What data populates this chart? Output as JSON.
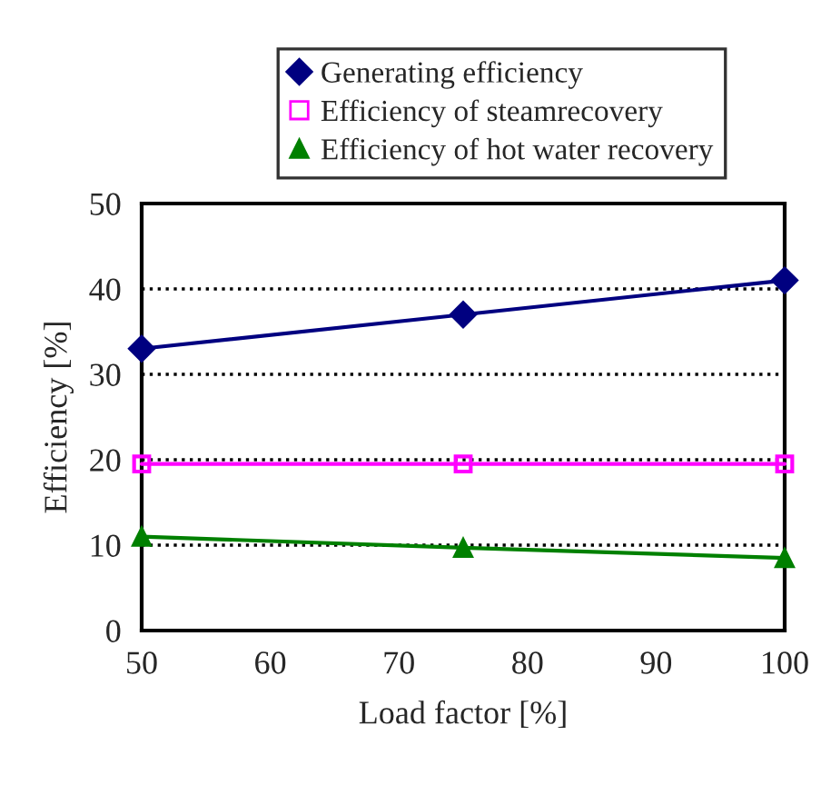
{
  "chart_data": {
    "type": "line",
    "xlabel": "Load factor [%]",
    "ylabel": "Efficiency [%]",
    "x": [
      50,
      75,
      100
    ],
    "series": [
      {
        "name": "Generating efficiency",
        "color": "#000080",
        "marker": "diamond",
        "values": [
          33,
          37,
          41
        ]
      },
      {
        "name": "Efficiency of steamrecovery",
        "color": "#ff00ff",
        "marker": "square",
        "values": [
          19.5,
          19.5,
          19.5
        ]
      },
      {
        "name": "Efficiency of hot water recovery",
        "color": "#008000",
        "marker": "triangle",
        "values": [
          11,
          9.7,
          8.5
        ]
      }
    ],
    "xlim": [
      50,
      100
    ],
    "xticks": [
      50,
      60,
      70,
      80,
      90,
      100
    ],
    "ylim": [
      0,
      50
    ],
    "yticks": [
      0,
      10,
      20,
      30,
      40,
      50
    ],
    "grid": "y",
    "legend": "top",
    "line_style": "solid"
  }
}
